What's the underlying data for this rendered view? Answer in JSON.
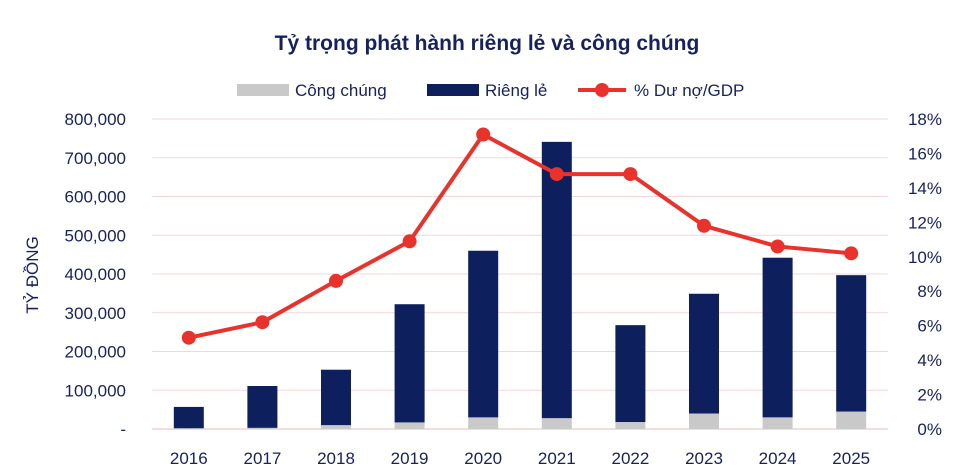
{
  "chart_data": {
    "type": "bar",
    "title": "Tỷ trọng phát hành riêng lẻ và công chúng",
    "ylabel": "TỶ ĐỒNG",
    "categories": [
      "2016",
      "2017",
      "2018",
      "2019",
      "2020",
      "2021",
      "2022",
      "2023",
      "2024",
      "2025"
    ],
    "series": [
      {
        "name": "Công chúng",
        "kind": "bar-stacked",
        "color": "#c9c9c9",
        "values": [
          2000,
          3000,
          10000,
          17000,
          30000,
          28000,
          18000,
          40000,
          30000,
          45000
        ]
      },
      {
        "name": "Riêng lẻ",
        "kind": "bar-stacked",
        "color": "#0d1f5c",
        "values": [
          55000,
          108000,
          143000,
          305000,
          430000,
          713000,
          250000,
          309000,
          412000,
          352000
        ]
      },
      {
        "name": "% Dư nợ/GDP",
        "kind": "line",
        "axis": "right",
        "color": "#e8322b",
        "values": [
          5.3,
          6.2,
          8.6,
          10.9,
          17.1,
          14.8,
          14.8,
          11.8,
          10.6,
          10.2
        ]
      }
    ],
    "left_axis": {
      "ylim": [
        0,
        800000
      ],
      "tick_labels": [
        "-",
        "100,000",
        "200,000",
        "300,000",
        "400,000",
        "500,000",
        "600,000",
        "700,000",
        "800,000"
      ]
    },
    "right_axis": {
      "ylim": [
        0,
        18
      ],
      "tick_labels": [
        "0%",
        "2%",
        "4%",
        "6%",
        "8%",
        "10%",
        "12%",
        "14%",
        "16%",
        "18%"
      ]
    },
    "grid": true,
    "legend_position": "top"
  }
}
